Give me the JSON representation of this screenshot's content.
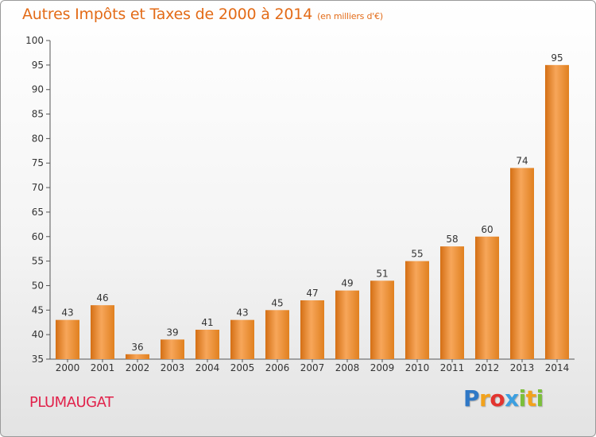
{
  "header": {
    "title": "Autres Impôts et Taxes de 2000 à 2014",
    "subtitle": "(en milliers d'€)"
  },
  "footer": {
    "town": "PLUMAUGAT",
    "logo_letters": [
      {
        "ch": "P",
        "color": "#2f78c6"
      },
      {
        "ch": "r",
        "color": "#f2a21c"
      },
      {
        "ch": "o",
        "color": "#e3342f"
      },
      {
        "ch": "x",
        "color": "#3c9fe0"
      },
      {
        "ch": "i",
        "color": "#7bbf3a"
      },
      {
        "ch": "t",
        "color": "#f2a21c"
      },
      {
        "ch": "i",
        "color": "#7bbf3a"
      }
    ]
  },
  "chart_data": {
    "type": "bar",
    "categories": [
      "2000",
      "2001",
      "2002",
      "2003",
      "2004",
      "2005",
      "2006",
      "2007",
      "2008",
      "2009",
      "2010",
      "2011",
      "2012",
      "2013",
      "2014"
    ],
    "values": [
      43,
      46,
      36,
      39,
      41,
      43,
      45,
      47,
      49,
      51,
      55,
      58,
      60,
      74,
      95
    ],
    "ylim": [
      35,
      100
    ],
    "yticks": [
      35,
      40,
      45,
      50,
      55,
      60,
      65,
      70,
      75,
      80,
      85,
      90,
      95,
      100
    ],
    "grid": false,
    "legend": "none",
    "colors": {
      "bar_light": "#f7a65a",
      "bar_dark": "#d46f14",
      "axis": "#555555"
    }
  }
}
